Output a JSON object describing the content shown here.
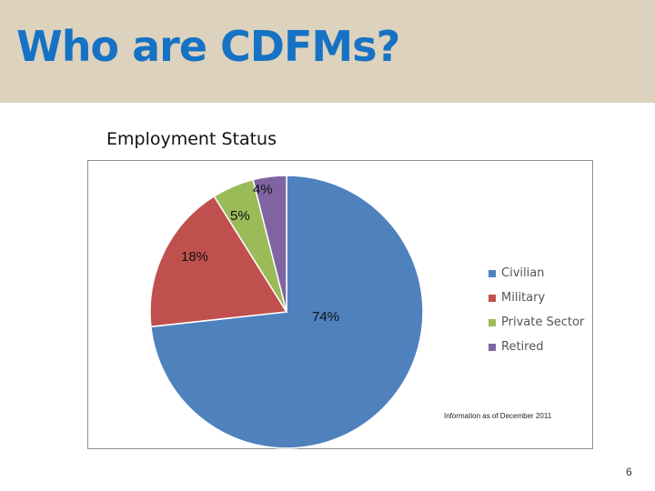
{
  "slide": {
    "title": "Who are CDFMs?",
    "page_number": "6"
  },
  "chart_caption": "Employment Status",
  "note": "Information as of December 2011",
  "chart_data": {
    "type": "pie",
    "title": "Employment Status",
    "categories": [
      "Civilian",
      "Military",
      "Private Sector",
      "Retired"
    ],
    "values": [
      74,
      18,
      5,
      4
    ],
    "labels": [
      "74%",
      "18%",
      "5%",
      "4%"
    ],
    "colors": [
      "#4f81bd",
      "#c0504d",
      "#9bbb59",
      "#8064a2"
    ],
    "legend_position": "right"
  }
}
